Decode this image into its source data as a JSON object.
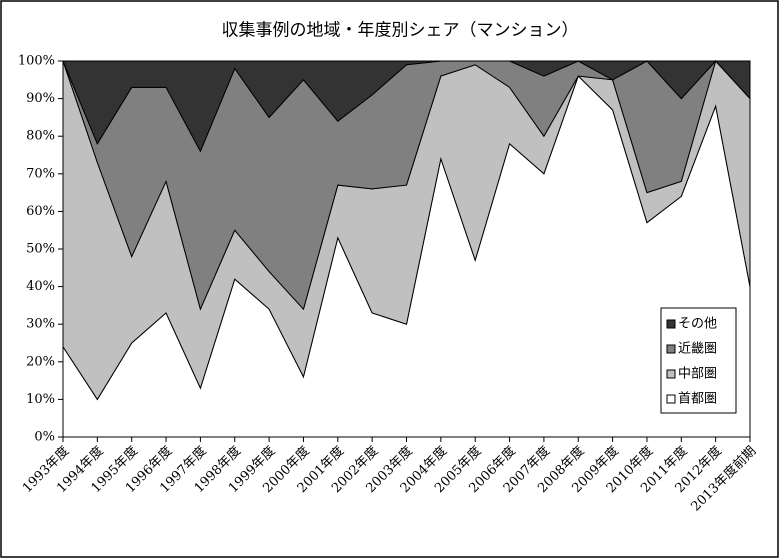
{
  "chart_data": {
    "type": "stacked-area",
    "title": "収集事例の地域・年度別シェア（マンション）",
    "categories": [
      "1993年度",
      "1994年度",
      "1995年度",
      "1996年度",
      "1997年度",
      "1998年度",
      "1999年度",
      "2000年度",
      "2001年度",
      "2002年度",
      "2003年度",
      "2004年度",
      "2005年度",
      "2006年度",
      "2007年度",
      "2008年度",
      "2009年度",
      "2010年度",
      "2011年度",
      "2012年度",
      "2013年度前期"
    ],
    "series": [
      {
        "name": "首都圏",
        "color": "#ffffff",
        "values": [
          24,
          10,
          25,
          33,
          13,
          42,
          34,
          16,
          53,
          33,
          30,
          74,
          47,
          78,
          70,
          96,
          87,
          57,
          64,
          88,
          40
        ]
      },
      {
        "name": "中部圏",
        "color": "#c0c0c0",
        "values": [
          76,
          63,
          23,
          35,
          21,
          13,
          10,
          18,
          14,
          33,
          37,
          22,
          52,
          15,
          10,
          0,
          8,
          8,
          4,
          12,
          50
        ]
      },
      {
        "name": "近畿圏",
        "color": "#808080",
        "values": [
          0,
          5,
          45,
          25,
          42,
          43,
          41,
          61,
          17,
          25,
          32,
          4,
          1,
          7,
          16,
          4,
          0,
          35,
          22,
          0,
          0
        ]
      },
      {
        "name": "その他",
        "color": "#333333",
        "values": [
          0,
          22,
          7,
          7,
          24,
          2,
          15,
          5,
          16,
          9,
          1,
          0,
          0,
          0,
          4,
          0,
          5,
          0,
          10,
          0,
          10
        ]
      }
    ],
    "ylim": [
      0,
      100
    ],
    "yticks": [
      {
        "value": 0,
        "label": "0%"
      },
      {
        "value": 10,
        "label": "10%"
      },
      {
        "value": 20,
        "label": "20%"
      },
      {
        "value": 30,
        "label": "30%"
      },
      {
        "value": 40,
        "label": "40%"
      },
      {
        "value": 50,
        "label": "50%"
      },
      {
        "value": 60,
        "label": "60%"
      },
      {
        "value": 70,
        "label": "70%"
      },
      {
        "value": 80,
        "label": "80%"
      },
      {
        "value": 90,
        "label": "90%"
      },
      {
        "value": 100,
        "label": "100%"
      }
    ],
    "legend": "bottom-right"
  }
}
